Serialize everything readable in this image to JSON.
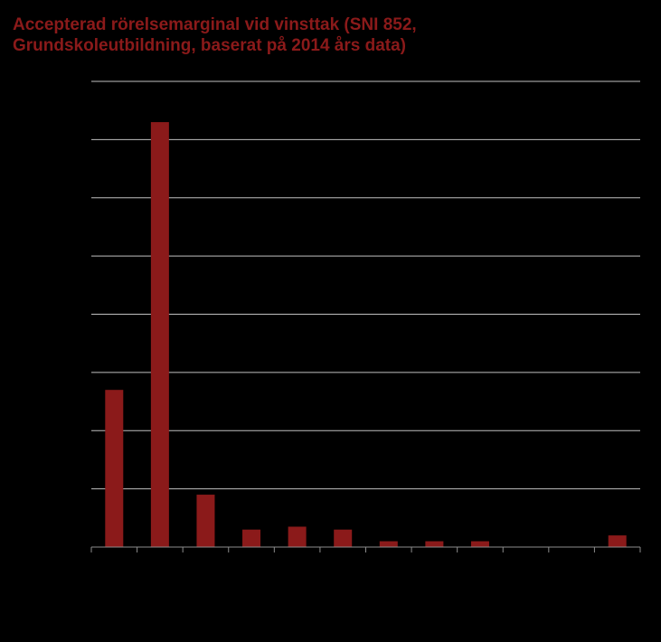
{
  "chart_data": {
    "type": "bar",
    "title_lines": [
      "Accepterad rörelsemarginal vid vinsttak (SNI 852,",
      "Grundskoleutbildning, baserat på 2014 års data)"
    ],
    "categories": [
      "",
      "",
      "",
      "",
      "",
      "",
      "",
      "",
      "",
      "",
      "",
      ""
    ],
    "values": [
      2.7,
      7.3,
      0.9,
      0.3,
      0.35,
      0.3,
      0.1,
      0.1,
      0.1,
      0,
      0,
      0.2
    ],
    "ylim": [
      0,
      8
    ],
    "grid": true,
    "bar_color": "#8b1a1a",
    "grid_color": "#bfbfbf",
    "axis_color": "#8c8c8c",
    "title_color": "#8b1a1a"
  }
}
